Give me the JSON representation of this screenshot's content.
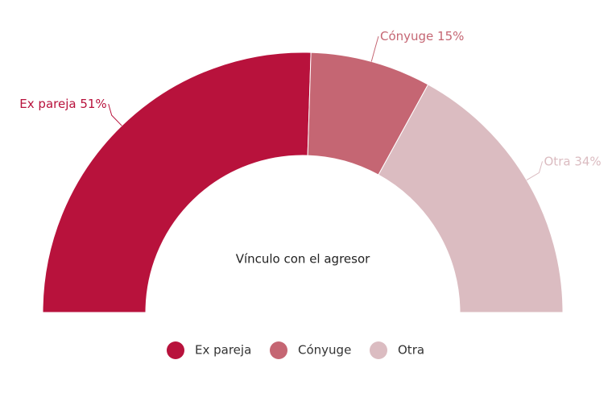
{
  "chart_data": {
    "type": "semi-donut",
    "title": "Vínculo con el agresor",
    "categories": [
      "Ex pareja",
      "Cónyuge",
      "Otra"
    ],
    "values": [
      51,
      15,
      34
    ],
    "value_labels": [
      "51%",
      "15%",
      "34%"
    ],
    "colors": [
      "#b8123c",
      "#c56673",
      "#dbbcc1"
    ]
  }
}
